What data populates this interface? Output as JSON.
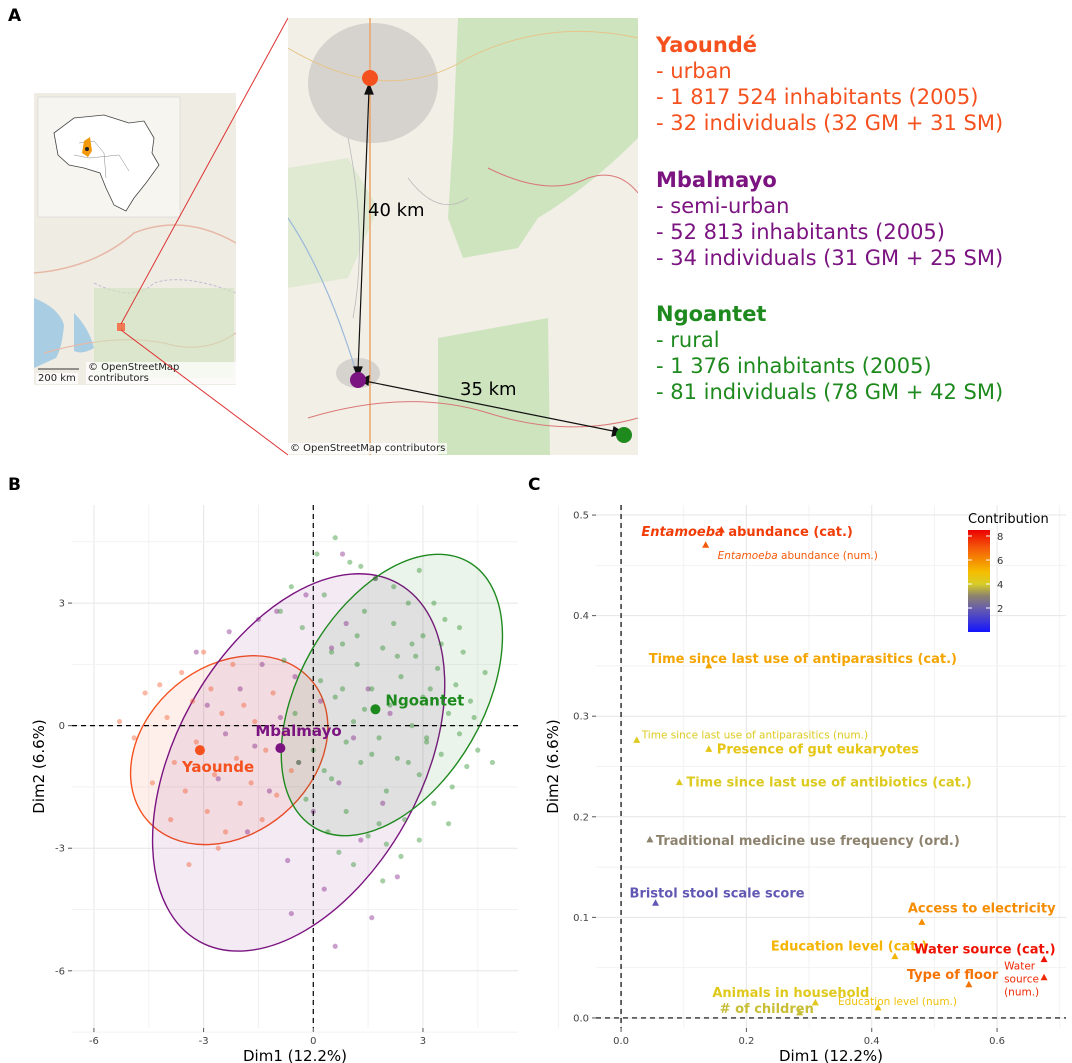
{
  "panel_a": {
    "letter": "A",
    "scale_label": "200 km",
    "attribution": "© OpenStreetMap contributors",
    "distances": [
      "40 km",
      "35 km"
    ],
    "cities": [
      {
        "name": "Yaoundé",
        "color": "#f4511e",
        "lines": [
          "- urban",
          "- 1 817 524 inhabitants (2005)",
          "- 32 individuals (32 GM + 31 SM)"
        ]
      },
      {
        "name": "Mbalmayo",
        "color": "#7b1480",
        "lines": [
          "- semi-urban",
          "- 52 813 inhabitants (2005)",
          "- 34 individuals (31 GM + 25 SM)"
        ]
      },
      {
        "name": "Ngoantet",
        "color": "#1e8a1e",
        "lines": [
          "- rural",
          "- 1 376 inhabitants (2005)",
          "- 81 individuals (78 GM + 42 SM)"
        ]
      }
    ]
  },
  "panel_b": {
    "letter": "B",
    "chart_data": {
      "type": "scatter",
      "xlabel": "Dim1 (12.2%)",
      "ylabel": "Dim2 (6.6%)",
      "xlim": [
        -6.6,
        5.6
      ],
      "ylim": [
        -7.4,
        5.4
      ],
      "xticks": [
        -6,
        -3,
        0,
        3
      ],
      "yticks": [
        -6,
        -3,
        0,
        3
      ],
      "grid": true,
      "series": [
        {
          "name": "Yaounde",
          "color": "#f4511e",
          "centroid": [
            -3.1,
            -0.6
          ],
          "ellipse": {
            "cx": -2.3,
            "cy": -0.6,
            "rx": 2.95,
            "ry": 2.05,
            "angle_deg": -40
          },
          "points": [
            [
              -5.3,
              0.1
            ],
            [
              -4.9,
              -0.3
            ],
            [
              -4.6,
              0.8
            ],
            [
              -4.2,
              1.0
            ],
            [
              -4.0,
              0.2
            ],
            [
              -3.8,
              -0.9
            ],
            [
              -3.6,
              1.3
            ],
            [
              -3.5,
              -1.6
            ],
            [
              -3.3,
              0.6
            ],
            [
              -3.2,
              -0.4
            ],
            [
              -3.0,
              1.8
            ],
            [
              -2.9,
              -2.1
            ],
            [
              -2.8,
              0.9
            ],
            [
              -2.7,
              -1.2
            ],
            [
              -2.5,
              0.3
            ],
            [
              -2.4,
              -2.6
            ],
            [
              -2.2,
              1.5
            ],
            [
              -2.1,
              -0.8
            ],
            [
              -2.0,
              -1.9
            ],
            [
              -1.9,
              0.5
            ],
            [
              -1.7,
              -1.4
            ],
            [
              -1.6,
              0.1
            ],
            [
              -1.4,
              -2.3
            ],
            [
              -1.3,
              -0.6
            ],
            [
              -1.1,
              0.8
            ],
            [
              -1.0,
              -1.7
            ],
            [
              -0.8,
              -0.2
            ],
            [
              -0.6,
              -1.1
            ],
            [
              -4.4,
              -1.4
            ],
            [
              -3.9,
              -2.3
            ],
            [
              -3.4,
              -3.4
            ],
            [
              -2.6,
              -3.0
            ]
          ]
        },
        {
          "name": "Mbalmayo",
          "color": "#7b1480",
          "centroid": [
            -0.9,
            -0.55
          ],
          "ellipse": {
            "cx": -0.4,
            "cy": -0.9,
            "rx": 5.6,
            "ry": 3.0,
            "angle_deg": -61
          },
          "points": [
            [
              -3.2,
              1.8
            ],
            [
              -2.9,
              0.5
            ],
            [
              -2.6,
              -1.3
            ],
            [
              -2.3,
              2.3
            ],
            [
              -2.0,
              0.9
            ],
            [
              -1.8,
              -2.6
            ],
            [
              -1.6,
              -0.5
            ],
            [
              -1.4,
              1.5
            ],
            [
              -1.2,
              -1.6
            ],
            [
              -1.0,
              2.8
            ],
            [
              -0.9,
              0.2
            ],
            [
              -0.7,
              -3.3
            ],
            [
              -0.5,
              1.2
            ],
            [
              -0.4,
              -0.9
            ],
            [
              -0.2,
              3.2
            ],
            [
              0.0,
              -2.1
            ],
            [
              0.2,
              0.6
            ],
            [
              0.3,
              -4.0
            ],
            [
              0.5,
              1.9
            ],
            [
              0.7,
              -1.4
            ],
            [
              0.9,
              2.5
            ],
            [
              1.1,
              -0.3
            ],
            [
              1.3,
              -2.8
            ],
            [
              1.5,
              0.9
            ],
            [
              1.7,
              3.6
            ],
            [
              1.9,
              -1.9
            ],
            [
              2.1,
              0.3
            ],
            [
              2.3,
              -3.7
            ],
            [
              0.6,
              -5.4
            ],
            [
              -0.6,
              -4.6
            ],
            [
              -1.5,
              2.6
            ],
            [
              -2.4,
              -0.2
            ],
            [
              0.8,
              4.2
            ],
            [
              1.6,
              -4.7
            ]
          ]
        },
        {
          "name": "Ngoantet",
          "color": "#1e8a1e",
          "centroid": [
            1.7,
            0.4
          ],
          "ellipse": {
            "cx": 2.15,
            "cy": 0.75,
            "rx": 4.2,
            "ry": 2.25,
            "angle_deg": -60
          },
          "points": [
            [
              -0.8,
              1.6
            ],
            [
              -0.5,
              0.3
            ],
            [
              -0.3,
              2.4
            ],
            [
              0.0,
              -0.6
            ],
            [
              0.2,
              1.1
            ],
            [
              0.3,
              3.2
            ],
            [
              0.5,
              -1.3
            ],
            [
              0.6,
              0.7
            ],
            [
              0.8,
              2.0
            ],
            [
              0.9,
              -2.1
            ],
            [
              1.0,
              4.0
            ],
            [
              1.1,
              0.1
            ],
            [
              1.2,
              1.5
            ],
            [
              1.3,
              -0.9
            ],
            [
              1.4,
              2.8
            ],
            [
              1.5,
              -2.7
            ],
            [
              1.6,
              0.9
            ],
            [
              1.7,
              3.6
            ],
            [
              1.8,
              -0.3
            ],
            [
              1.9,
              1.9
            ],
            [
              2.0,
              -1.6
            ],
            [
              2.1,
              0.5
            ],
            [
              2.2,
              2.5
            ],
            [
              2.3,
              -0.8
            ],
            [
              2.4,
              1.2
            ],
            [
              2.5,
              -2.3
            ],
            [
              2.6,
              3.0
            ],
            [
              2.7,
              0.0
            ],
            [
              2.8,
              1.7
            ],
            [
              2.9,
              -1.2
            ],
            [
              3.0,
              2.2
            ],
            [
              3.1,
              -0.4
            ],
            [
              3.2,
              0.9
            ],
            [
              3.3,
              -1.9
            ],
            [
              3.4,
              1.4
            ],
            [
              3.5,
              -0.7
            ],
            [
              3.6,
              2.6
            ],
            [
              3.7,
              0.3
            ],
            [
              3.8,
              -1.5
            ],
            [
              3.9,
              1.0
            ],
            [
              4.0,
              -0.2
            ],
            [
              4.1,
              1.8
            ],
            [
              4.2,
              -1.0
            ],
            [
              4.3,
              0.6
            ],
            [
              4.5,
              -0.6
            ],
            [
              4.7,
              1.3
            ],
            [
              4.9,
              -0.9
            ],
            [
              -0.2,
              -1.8
            ],
            [
              0.4,
              -2.6
            ],
            [
              0.7,
              -3.1
            ],
            [
              1.1,
              -3.4
            ],
            [
              1.8,
              -2.4
            ],
            [
              2.4,
              -3.2
            ],
            [
              2.9,
              -2.8
            ],
            [
              0.1,
              4.2
            ],
            [
              0.6,
              4.6
            ],
            [
              1.3,
              3.9
            ],
            [
              2.2,
              3.4
            ],
            [
              2.9,
              3.8
            ],
            [
              3.3,
              3.0
            ],
            [
              -0.6,
              3.4
            ],
            [
              -0.9,
              2.8
            ],
            [
              3.5,
              2.0
            ],
            [
              4.0,
              2.4
            ],
            [
              4.4,
              0.2
            ],
            [
              -0.4,
              -0.9
            ],
            [
              0.9,
              -0.4
            ],
            [
              1.6,
              -0.7
            ],
            [
              2.6,
              -0.9
            ],
            [
              3.0,
              0.7
            ],
            [
              3.7,
              -2.4
            ],
            [
              1.9,
              -3.8
            ],
            [
              0.3,
              -1.1
            ],
            [
              2.3,
              1.7
            ],
            [
              1.2,
              2.2
            ],
            [
              0.5,
              1.8
            ],
            [
              2.7,
              2.0
            ],
            [
              3.1,
              -0.3
            ],
            [
              1.4,
              0.4
            ],
            [
              0.8,
              0.9
            ],
            [
              2.0,
              -2.9
            ]
          ]
        }
      ]
    }
  },
  "panel_c": {
    "letter": "C",
    "chart_data": {
      "type": "scatter",
      "xlabel": "Dim1 (12.2%)",
      "ylabel": "Dim2 (6.6%)",
      "xlim": [
        -0.04,
        0.71
      ],
      "ylim": [
        -0.01,
        0.51
      ],
      "xticks": [
        0.0,
        0.2,
        0.4,
        0.6
      ],
      "yticks": [
        0.0,
        0.1,
        0.2,
        0.3,
        0.4,
        0.5
      ],
      "grid": true,
      "legend_title": "Contribution",
      "legend_placement": "top-right",
      "legend_ticks": [
        2,
        4,
        6,
        8
      ],
      "points": [
        {
          "label_prefix": "Entamoeba",
          "label": " abundance (cat.)",
          "x": 0.16,
          "y": 0.485,
          "contribution": 7.5,
          "bold": true,
          "size": "large"
        },
        {
          "label_prefix": "Entamoeba",
          "label": " abundance (num.)",
          "x": 0.135,
          "y": 0.47,
          "contribution": 7.0,
          "bold": false,
          "size": "small"
        },
        {
          "label": "Time since last use of antiparasitics (cat.)",
          "x": 0.14,
          "y": 0.35,
          "contribution": 5.5,
          "bold": true,
          "size": "large"
        },
        {
          "label": "Time since last use of antiparasitics (num.)",
          "x": 0.025,
          "y": 0.276,
          "contribution": 4.2,
          "bold": false,
          "size": "small"
        },
        {
          "label": "Presence of gut eukaryotes",
          "x": 0.14,
          "y": 0.267,
          "contribution": 4.5,
          "bold": true,
          "size": "large"
        },
        {
          "label": "Time since last use of antibiotics (cat.)",
          "x": 0.093,
          "y": 0.234,
          "contribution": 4.2,
          "bold": true,
          "size": "large"
        },
        {
          "label": "Traditional medicine use frequency (ord.)",
          "x": 0.046,
          "y": 0.177,
          "contribution": 3.0,
          "bold": true,
          "size": "large"
        },
        {
          "label": "Bristol stool scale score",
          "x": 0.055,
          "y": 0.114,
          "contribution": 1.8,
          "bold": true,
          "size": "large"
        },
        {
          "label": "Access to electricity",
          "x": 0.48,
          "y": 0.095,
          "contribution": 6.0,
          "bold": true,
          "size": "large"
        },
        {
          "label": "Education level (cat.)",
          "x": 0.437,
          "y": 0.061,
          "contribution": 5.2,
          "bold": true,
          "size": "large"
        },
        {
          "label": "Water source (cat.)",
          "x": 0.675,
          "y": 0.058,
          "contribution": 8.2,
          "bold": true,
          "size": "large"
        },
        {
          "label": "Type of floor",
          "x": 0.555,
          "y": 0.033,
          "contribution": 6.5,
          "bold": true,
          "size": "large"
        },
        {
          "label": "Water source (num.)",
          "x": 0.675,
          "y": 0.04,
          "contribution": 7.8,
          "bold": false,
          "size": "small"
        },
        {
          "label": "Animals in household",
          "x": 0.31,
          "y": 0.015,
          "contribution": 4.3,
          "bold": true,
          "size": "large"
        },
        {
          "label": "# of children",
          "x": 0.285,
          "y": 0.005,
          "contribution": 3.8,
          "bold": true,
          "size": "large"
        },
        {
          "label": "Education level (num.)",
          "x": 0.41,
          "y": 0.01,
          "contribution": 4.8,
          "bold": false,
          "size": "small"
        }
      ]
    }
  }
}
